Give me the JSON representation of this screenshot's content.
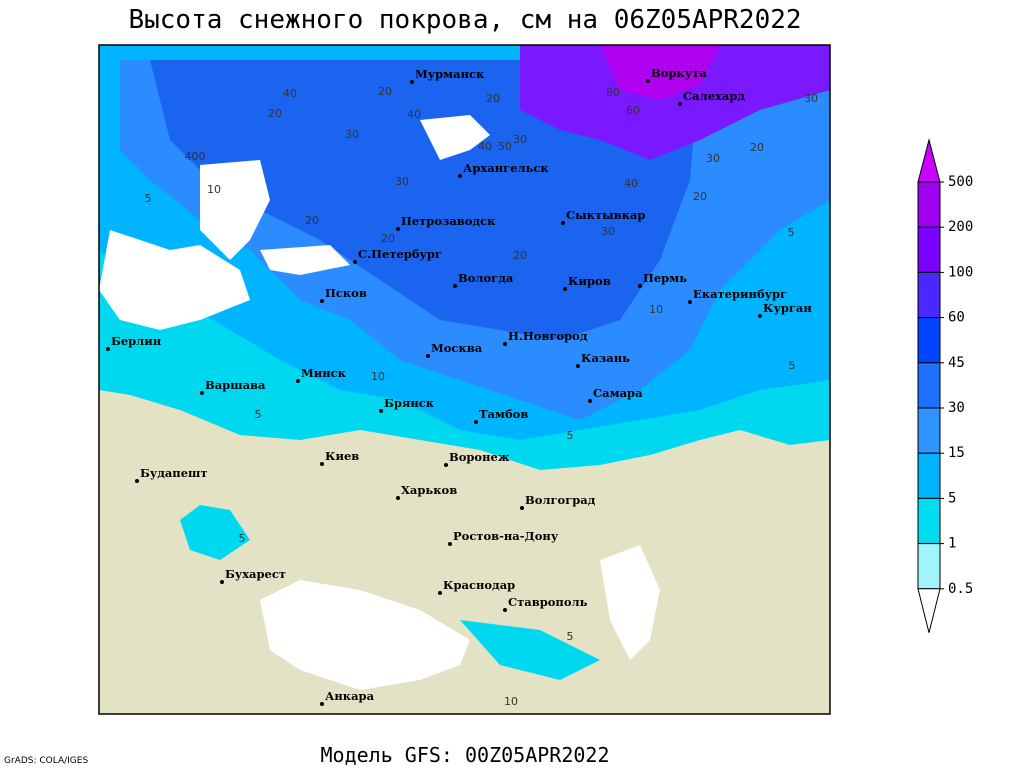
{
  "header": {
    "title": "Высота снежного покрова, см на 06Z05APR2022"
  },
  "footer": {
    "model": "Модель GFS: 00Z05APR2022",
    "credit": "GrADS: COLA/IGES"
  },
  "legend": {
    "levels": [
      500,
      200,
      100,
      60,
      45,
      30,
      15,
      5,
      1,
      0.5
    ]
  },
  "cities": [
    "Мурманск",
    "Воркута",
    "Салехард",
    "Архангельск",
    "Петрозаводск",
    "Сыктывкар",
    "С.Петербург",
    "Вологда",
    "Киров",
    "Пермь",
    "Екатеринбург",
    "Курган",
    "Псков",
    "Берлин",
    "Н.Новгород",
    "Москва",
    "Казань",
    "Минск",
    "Варшава",
    "Самара",
    "Брянск",
    "Тамбов",
    "Киев",
    "Воронеж",
    "Будапешт",
    "Харьков",
    "Волгоград",
    "Ростов-на-Дону",
    "Бухарест",
    "Краснодар",
    "Ставрополь",
    "Анкара"
  ],
  "contour_labels": [
    "40",
    "20",
    "30",
    "20",
    "40",
    "30",
    "400",
    "10",
    "5",
    "30",
    "20",
    "30",
    "20",
    "40",
    "50",
    "80",
    "60",
    "30",
    "20",
    "30",
    "40",
    "20",
    "20",
    "5",
    "20",
    "10",
    "5",
    "10",
    "5",
    "5",
    "5",
    "5",
    "10"
  ]
}
